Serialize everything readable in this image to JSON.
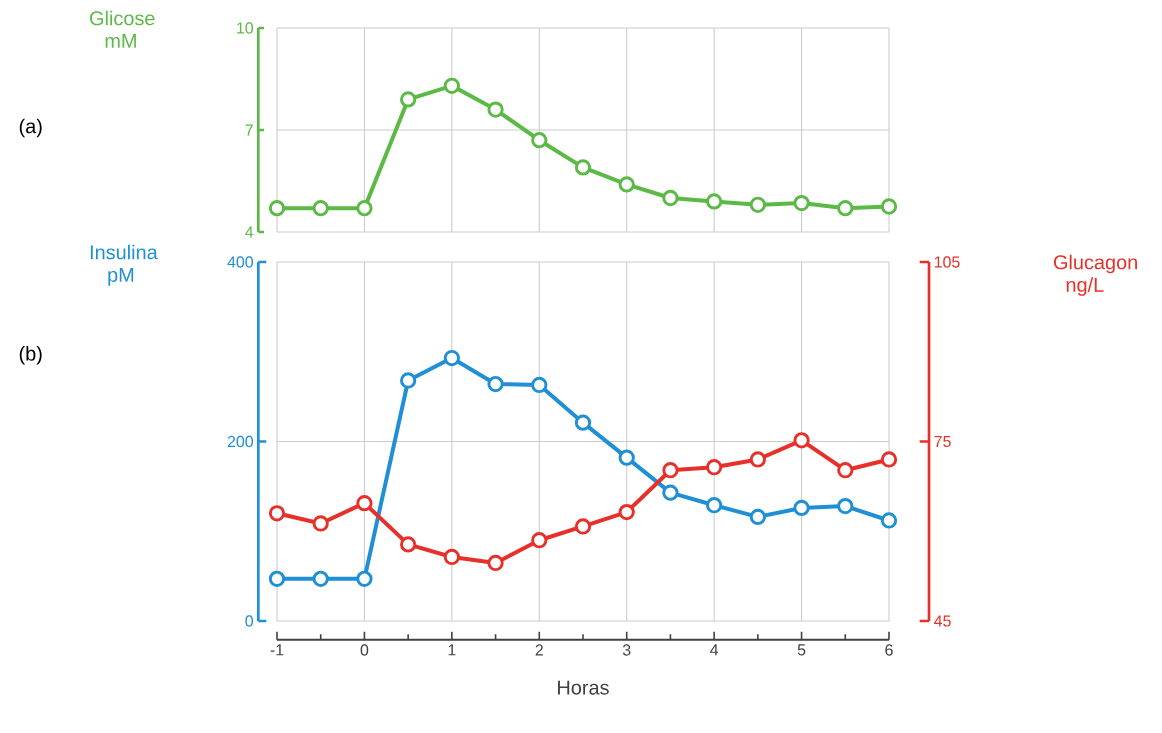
{
  "chart_data": [
    {
      "type": "line",
      "ylabel": "Glicose mM",
      "annotations": [
        "(a)"
      ],
      "x": [
        -1,
        -0.5,
        0,
        0.5,
        1,
        1.5,
        2,
        2.5,
        3,
        3.5,
        4,
        4.5,
        5,
        5.5,
        6
      ],
      "series": [
        {
          "color": "#5bb946",
          "values": [
            4.7,
            4.7,
            4.7,
            7.9,
            8.3,
            7.6,
            6.7,
            5.9,
            5.4,
            5.0,
            4.9,
            4.8,
            4.85,
            4.7,
            4.75
          ]
        }
      ],
      "xlim": [
        -1,
        6
      ],
      "xticks": [
        -1,
        0,
        1,
        2,
        3,
        4,
        5,
        6
      ],
      "ylim": [
        4,
        10
      ],
      "yticks": [
        4,
        7,
        10
      ],
      "grid": true,
      "marker": "circle",
      "tick_labels": "y"
    },
    {
      "type": "line",
      "xlabel": "Horas",
      "ylabel": "Insulina pM",
      "y2label": "Glucagon ng/L",
      "annotations": [
        "(b)"
      ],
      "x": [
        -1,
        -0.5,
        0,
        0.5,
        1,
        1.5,
        2,
        2.5,
        3,
        3.5,
        4,
        4.5,
        5,
        5.5,
        6
      ],
      "series": [
        {
          "color": "#1f8fd6",
          "values": [
            47,
            47,
            47,
            268,
            293,
            264,
            263,
            221,
            182,
            143,
            129,
            116,
            126,
            128,
            112
          ]
        },
        {
          "color": "#e8302a",
          "axis": "y2",
          "values": [
            63,
            61.3,
            64.7,
            57.8,
            55.7,
            54.7,
            58.5,
            60.8,
            63.2,
            70.2,
            70.7,
            72,
            75.2,
            70.2,
            72
          ]
        }
      ],
      "xlim": [
        -1,
        6
      ],
      "xticks": [
        -1,
        0,
        1,
        2,
        3,
        4,
        5,
        6
      ],
      "ylim": [
        0,
        400
      ],
      "yticks": [
        0,
        200,
        400
      ],
      "y2lim": [
        45,
        105
      ],
      "y2ticks": [
        45,
        75,
        105
      ],
      "grid": true,
      "marker": "circle"
    }
  ]
}
